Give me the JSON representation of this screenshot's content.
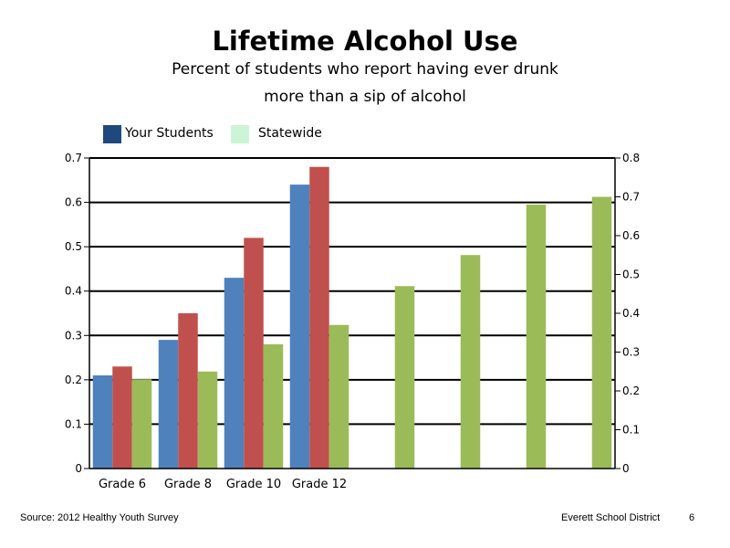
{
  "chart_data": {
    "type": "bar",
    "title": "Lifetime Alcohol Use",
    "subtitle_lines": [
      "Percent of students who report having ever drunk",
      "more than a sip of alcohol"
    ],
    "categories": [
      "Grade 6",
      "Grade 8",
      "Grade 10",
      "Grade 12",
      "",
      "",
      "",
      ""
    ],
    "series": [
      {
        "axis": "left",
        "color": "#4f81bd",
        "values": [
          0.21,
          0.29,
          0.43,
          0.64,
          null,
          null,
          null,
          null
        ]
      },
      {
        "axis": "left",
        "color": "#c0504d",
        "values": [
          0.23,
          0.35,
          0.52,
          0.68,
          null,
          null,
          null,
          null
        ]
      },
      {
        "axis": "right",
        "color": "#9bbb59",
        "values": [
          0.23,
          0.25,
          0.32,
          0.37,
          0.47,
          0.55,
          0.68,
          0.7
        ]
      }
    ],
    "left_axis": {
      "ylim": [
        0,
        0.7
      ],
      "ticks": [
        "0",
        "0.1",
        "0.2",
        "0.3",
        "0.4",
        "0.5",
        "0.6",
        "0.7"
      ]
    },
    "right_axis": {
      "ylim": [
        0,
        0.8
      ],
      "ticks": [
        "0",
        "0.1",
        "0.2",
        "0.3",
        "0.4",
        "0.5",
        "0.6",
        "0.7",
        "0.8"
      ]
    },
    "grid": true,
    "legend": {
      "placement": "top-left",
      "entries": [
        {
          "label": "Your Students",
          "color": "#1f497d"
        },
        {
          "label": "Statewide",
          "color": "#ccf5d6"
        }
      ]
    }
  },
  "footer": {
    "source": "Source: 2012 Healthy Youth Survey",
    "organization": "Everett School District",
    "page_number": "6"
  }
}
